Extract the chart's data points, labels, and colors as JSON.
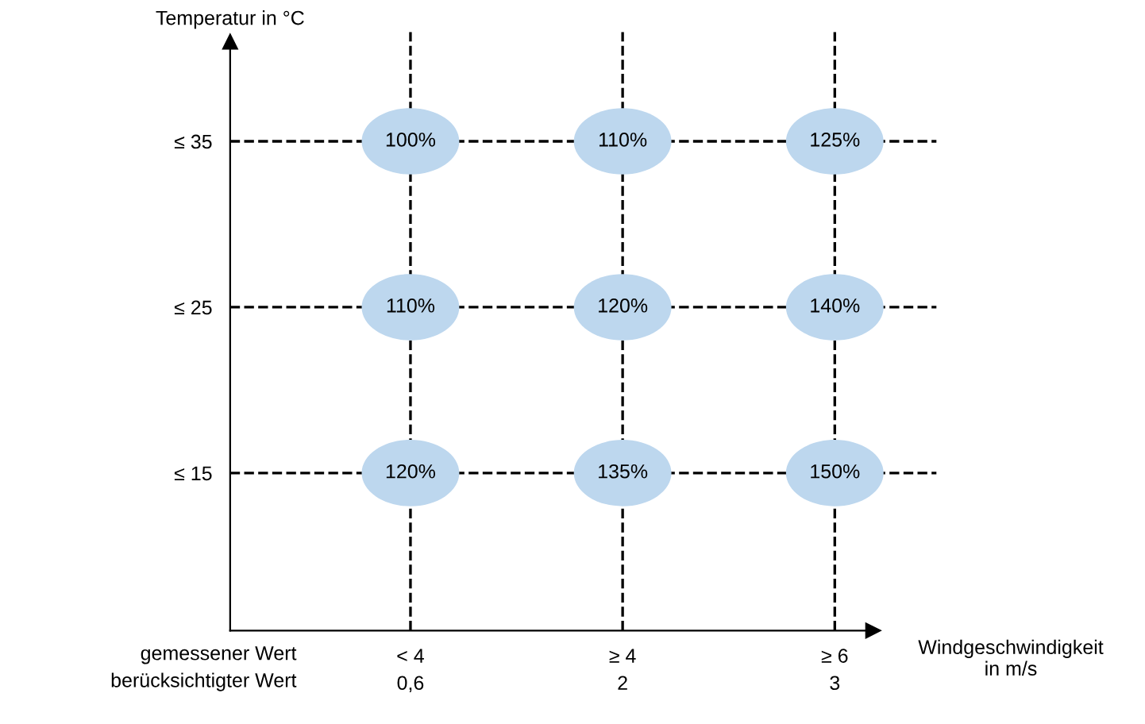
{
  "chart_data": {
    "type": "heatmap",
    "categories": [
      "< 4\n0,6",
      "≥ 4\n2",
      "≥ 6\n3"
    ],
    "y_categories": [
      "≤ 35",
      "≤ 25",
      "≤ 15"
    ],
    "cells": [
      [
        100,
        110,
        125
      ],
      [
        110,
        120,
        140
      ],
      [
        120,
        135,
        150
      ]
    ],
    "cell_labels": [
      [
        "100%",
        "110%",
        "125%"
      ],
      [
        "110%",
        "120%",
        "140%"
      ],
      [
        "120%",
        "135%",
        "150%"
      ]
    ],
    "color": "#bdd7ee",
    "xlabel": "Windgeschwindigkeit\nin m/s",
    "ylabel": "Temperatur in °C",
    "annotations": [
      "gemessener Wert\nberücksichtigter Wert"
    ],
    "grid": true,
    "line_style": "dashed"
  }
}
